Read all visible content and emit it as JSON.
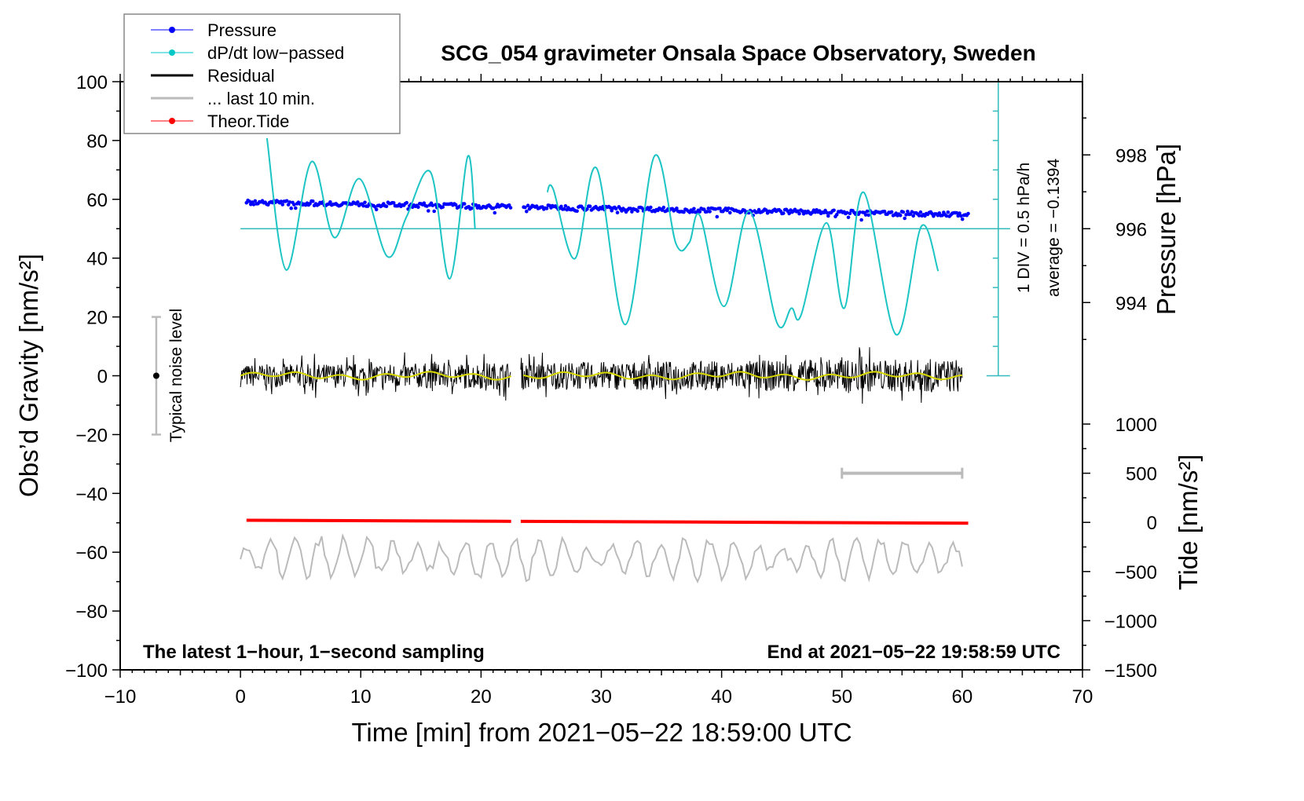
{
  "chart_data": {
    "type": "line",
    "title": "SCG_054 gravimeter Onsala Space Observatory, Sweden",
    "xlabel": "Time [min] from 2021−05−22 18:59:00 UTC",
    "ylabel_left": "Obs’d Gravity [nm/s²]",
    "ylabel_right_top": "Pressure [hPa]",
    "ylabel_right_bottom": "Tide [nm/s²]",
    "xlim": [
      -10,
      70
    ],
    "ylim_left": [
      -100,
      100
    ],
    "x_ticks": [
      "−10",
      "0",
      "10",
      "20",
      "30",
      "40",
      "50",
      "60",
      "70"
    ],
    "x_tick_values": [
      -10,
      0,
      10,
      20,
      30,
      40,
      50,
      60,
      70
    ],
    "y_ticks_left": [
      "−100",
      "−80",
      "−60",
      "−40",
      "−20",
      "0",
      "20",
      "40",
      "60",
      "80",
      "100"
    ],
    "y_tick_values_left": [
      -100,
      -80,
      -60,
      -40,
      -20,
      0,
      20,
      40,
      60,
      80,
      100
    ],
    "pressure_ticks": [
      "998",
      "996",
      "994"
    ],
    "pressure_tick_values": [
      998,
      996,
      994
    ],
    "tide_ticks": [
      "1000",
      "500",
      "0",
      "−500",
      "−1000",
      "−1500"
    ],
    "tide_tick_values": [
      1000,
      500,
      0,
      -500,
      -1000,
      -1500
    ],
    "legend": {
      "placement": "top-left",
      "entries": [
        {
          "label": "Pressure",
          "color": "#0000ff"
        },
        {
          "label": "dP/dt low−passed",
          "color": "#00c8c8"
        },
        {
          "label": "Residual",
          "color": "#000000"
        },
        {
          "label": "... last 10 min.",
          "color": "#bbbbbb"
        },
        {
          "label": "Theor.Tide",
          "color": "#ff0000"
        }
      ]
    },
    "annotations": {
      "div_label": "1 DIV = 0.5 hPa/h",
      "average_label": "average = −0.1394",
      "noise_label": "Typical noise level",
      "bottom_left": "The latest 1−hour, 1−second sampling",
      "bottom_right": "End at 2021−05−22 19:58:59 UTC"
    },
    "noise_level": {
      "x": -7,
      "range": [
        -20,
        20
      ]
    },
    "last10_bar": {
      "x_range": [
        50,
        60
      ],
      "tide_level": 500
    },
    "gap_minutes": [
      22.5,
      23.3
    ],
    "pressure": {
      "unit": "hPa",
      "start": 996.72,
      "end": 996.38,
      "x_range": [
        0.5,
        60.5
      ],
      "scatter": 0.12
    },
    "dpdt": {
      "unit": "hPa/h",
      "zero_pressure_level": 996,
      "segments": [
        [
          [
            2.2,
            1.54
          ],
          [
            3.8,
            -0.7
          ],
          [
            5.9,
            1.14
          ],
          [
            7.8,
            -0.15
          ],
          [
            9.9,
            0.85
          ],
          [
            12.2,
            -0.47
          ],
          [
            13.8,
            0.2
          ],
          [
            15.8,
            0.96
          ],
          [
            17.4,
            -0.85
          ],
          [
            18.9,
            1.23
          ],
          [
            19.5,
            0
          ]
        ],
        [
          [
            25.5,
            0.62
          ],
          [
            26.0,
            0.67
          ],
          [
            27.8,
            -0.51
          ],
          [
            29.6,
            1.03
          ],
          [
            32.0,
            -1.63
          ],
          [
            34.4,
            1.23
          ],
          [
            36.2,
            -0.25
          ],
          [
            37.3,
            -0.24
          ],
          [
            38.2,
            0.22
          ],
          [
            40.2,
            -1.32
          ],
          [
            42.3,
            0.3
          ],
          [
            44.6,
            -1.6
          ],
          [
            45.8,
            -1.35
          ],
          [
            46.6,
            -1.47
          ],
          [
            48.7,
            0.1
          ],
          [
            50.2,
            -1.35
          ],
          [
            51.8,
            0.62
          ],
          [
            54.5,
            -1.8
          ],
          [
            56.6,
            0.04
          ],
          [
            58.0,
            -0.72
          ]
        ]
      ]
    },
    "residual": {
      "x_range": [
        0,
        60
      ],
      "amplitude": 6,
      "color": "#000000",
      "smooth_color": "#d8d800"
    },
    "last10": {
      "baseline": -62,
      "amplitude": 6
    },
    "tide": {
      "start": 22,
      "end": -8,
      "x_range": [
        0.5,
        60.5
      ]
    }
  }
}
